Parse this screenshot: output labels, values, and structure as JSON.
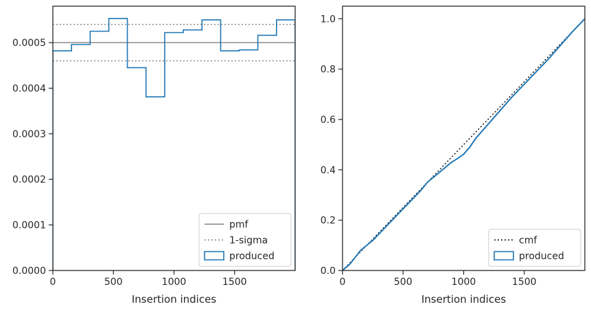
{
  "chart_data": [
    {
      "type": "histogram",
      "xlabel": "Insertion indices",
      "ylabel": "",
      "xlim": [
        0,
        2000
      ],
      "ylim": [
        0,
        0.00058
      ],
      "xticks": [
        0,
        500,
        1000,
        1500
      ],
      "xtick_labels": [
        "0",
        "500",
        "1000",
        "1500"
      ],
      "yticks": [
        0,
        0.0001,
        0.0002,
        0.0003,
        0.0004,
        0.0005
      ],
      "ytick_labels": [
        "0.0000",
        "0.0001",
        "0.0002",
        "0.0003",
        "0.0004",
        "0.0005"
      ],
      "grid": false,
      "legend_position": "lower-right",
      "bin_edges": [
        0,
        154,
        308,
        462,
        615,
        769,
        923,
        1077,
        1231,
        1385,
        1538,
        1692,
        1846,
        2000
      ],
      "series": [
        {
          "name": "pmf",
          "kind": "hline",
          "value": 0.0005,
          "color": "#808080",
          "style": "solid"
        },
        {
          "name": "1-sigma",
          "kind": "hlines",
          "values": [
            0.00054,
            0.00046
          ],
          "color": "#808080",
          "style": "dotted"
        },
        {
          "name": "produced",
          "kind": "step-histogram",
          "color": "#1f77b4",
          "values": [
            0.000482,
            0.000496,
            0.000525,
            0.000553,
            0.000445,
            0.000381,
            0.000522,
            0.000528,
            0.00055,
            0.000482,
            0.000484,
            0.000516,
            0.00055
          ]
        }
      ],
      "legend": [
        "pmf",
        "1-sigma",
        "produced"
      ]
    },
    {
      "type": "line",
      "xlabel": "Insertion indices",
      "ylabel": "",
      "xlim": [
        0,
        2000
      ],
      "ylim": [
        0,
        1.05
      ],
      "xticks": [
        0,
        500,
        1000,
        1500
      ],
      "xtick_labels": [
        "0",
        "500",
        "1000",
        "1500"
      ],
      "yticks": [
        0,
        0.2,
        0.4,
        0.6,
        0.8,
        1.0
      ],
      "ytick_labels": [
        "0.0",
        "0.2",
        "0.4",
        "0.6",
        "0.8",
        "1.0"
      ],
      "grid": false,
      "legend_position": "lower-right",
      "series": [
        {
          "name": "cmf",
          "style": "dotted",
          "color": "#000000",
          "x": [
            0,
            2000
          ],
          "y": [
            0,
            1.0
          ]
        },
        {
          "name": "produced",
          "style": "solid",
          "color": "#1f77b4",
          "x": [
            0,
            60,
            150,
            250,
            350,
            450,
            550,
            650,
            700,
            800,
            900,
            950,
            1000,
            1050,
            1100,
            1200,
            1300,
            1400,
            1500,
            1600,
            1700,
            1800,
            1900,
            2000
          ],
          "y": [
            0,
            0.025,
            0.08,
            0.12,
            0.17,
            0.22,
            0.27,
            0.32,
            0.35,
            0.39,
            0.43,
            0.445,
            0.462,
            0.49,
            0.525,
            0.58,
            0.635,
            0.69,
            0.74,
            0.79,
            0.84,
            0.895,
            0.95,
            1.0
          ]
        }
      ],
      "legend": [
        "cmf",
        "produced"
      ]
    }
  ]
}
